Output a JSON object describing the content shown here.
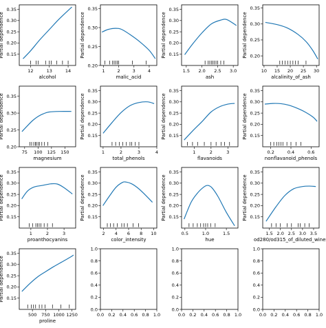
{
  "colors": {
    "line": "#1f77b4",
    "axes": "#000000",
    "background": "#ffffff"
  },
  "ylabel": "Partial dependence",
  "chart_data": [
    {
      "type": "line",
      "xlabel": "alcohol",
      "xlim": [
        11.4,
        14.4
      ],
      "ylim": [
        0.1,
        0.37
      ],
      "xticks": [
        12,
        13,
        14
      ],
      "yticks": [
        0.15,
        0.2,
        0.25,
        0.3,
        0.35
      ],
      "x": [
        11.6,
        12.0,
        12.5,
        13.0,
        13.5,
        14.0,
        14.2
      ],
      "y": [
        0.13,
        0.165,
        0.215,
        0.26,
        0.305,
        0.345,
        0.36
      ],
      "deciles": [
        12.0,
        12.3,
        12.4,
        12.8,
        13.0,
        13.1,
        13.4,
        13.7,
        14.0
      ]
    },
    {
      "type": "line",
      "xlabel": "malic_acid",
      "xlim": [
        0.8,
        4.5
      ],
      "ylim": [
        0.2,
        0.36
      ],
      "xticks": [
        1,
        2,
        3,
        4
      ],
      "yticks": [
        0.2,
        0.25,
        0.3,
        0.35
      ],
      "x": [
        0.9,
        1.3,
        1.8,
        2.2,
        2.8,
        3.4,
        4.0,
        4.4
      ],
      "y": [
        0.288,
        0.295,
        0.298,
        0.295,
        0.28,
        0.262,
        0.24,
        0.218
      ],
      "deciles": [
        1.1,
        1.4,
        1.6,
        1.7,
        1.8,
        1.9,
        2.0,
        2.9,
        3.8
      ]
    },
    {
      "type": "line",
      "xlabel": "ash",
      "xlim": [
        1.35,
        3.15
      ],
      "ylim": [
        0.1,
        0.37
      ],
      "xticks": [
        1.5,
        2.0,
        2.5,
        3.0
      ],
      "yticks": [
        0.15,
        0.2,
        0.25,
        0.3,
        0.35
      ],
      "x": [
        1.45,
        1.7,
        2.0,
        2.3,
        2.6,
        2.8,
        3.1
      ],
      "y": [
        0.148,
        0.195,
        0.245,
        0.285,
        0.302,
        0.304,
        0.278
      ],
      "deciles": [
        2.1,
        2.2,
        2.25,
        2.3,
        2.35,
        2.4,
        2.45,
        2.5,
        2.6,
        2.7
      ]
    },
    {
      "type": "line",
      "xlabel": "alcalinity_of_ash",
      "xlim": [
        9.5,
        31
      ],
      "ylim": [
        0.17,
        0.36
      ],
      "xticks": [
        10,
        15,
        20,
        25,
        30
      ],
      "yticks": [
        0.2,
        0.25,
        0.3,
        0.35
      ],
      "x": [
        10.5,
        15,
        19,
        23,
        26,
        28.5,
        30.5
      ],
      "y": [
        0.305,
        0.298,
        0.287,
        0.267,
        0.245,
        0.218,
        0.19
      ],
      "deciles": [
        16,
        17,
        18,
        19,
        20,
        21,
        22,
        23,
        26
      ]
    },
    {
      "type": "line",
      "xlabel": "magnesium",
      "xlim": [
        65,
        170
      ],
      "ylim": [
        0.2,
        0.38
      ],
      "xticks": [
        75,
        100,
        125,
        150
      ],
      "yticks": [
        0.2,
        0.25,
        0.3,
        0.35
      ],
      "x": [
        70,
        80,
        90,
        100,
        110,
        120,
        140,
        162
      ],
      "y": [
        0.245,
        0.262,
        0.278,
        0.29,
        0.298,
        0.303,
        0.305,
        0.305
      ],
      "deciles": [
        85,
        88,
        92,
        95,
        97,
        100,
        103,
        107,
        112,
        118
      ]
    },
    {
      "type": "line",
      "xlabel": "total_phenols",
      "xlim": [
        0.85,
        4.0
      ],
      "ylim": [
        0.1,
        0.37
      ],
      "xticks": [
        1,
        2,
        3,
        4
      ],
      "yticks": [
        0.15,
        0.2,
        0.25,
        0.3,
        0.35
      ],
      "x": [
        1.0,
        1.5,
        2.0,
        2.5,
        3.0,
        3.5,
        3.85
      ],
      "y": [
        0.16,
        0.208,
        0.252,
        0.283,
        0.297,
        0.3,
        0.292
      ],
      "deciles": [
        1.5,
        1.7,
        1.9,
        2.1,
        2.3,
        2.5,
        2.6,
        2.8,
        3.0
      ]
    },
    {
      "type": "line",
      "xlabel": "flavanoids",
      "xlim": [
        0.25,
        3.6
      ],
      "ylim": [
        0.1,
        0.37
      ],
      "xticks": [
        1,
        2,
        3
      ],
      "yticks": [
        0.15,
        0.2,
        0.25,
        0.3,
        0.35
      ],
      "x": [
        0.4,
        0.9,
        1.5,
        2.0,
        2.5,
        3.0,
        3.4
      ],
      "y": [
        0.13,
        0.17,
        0.215,
        0.255,
        0.278,
        0.29,
        0.293
      ],
      "deciles": [
        0.6,
        0.9,
        1.2,
        1.6,
        2.0,
        2.3,
        2.6,
        2.8,
        3.1
      ]
    },
    {
      "type": "line",
      "xlabel": "nonflavanoid_phenols",
      "xlim": [
        0.12,
        0.68
      ],
      "ylim": [
        0.1,
        0.37
      ],
      "xticks": [
        0.2,
        0.4,
        0.6
      ],
      "yticks": [
        0.15,
        0.2,
        0.25,
        0.3,
        0.35
      ],
      "x": [
        0.14,
        0.22,
        0.3,
        0.38,
        0.46,
        0.54,
        0.62,
        0.66
      ],
      "y": [
        0.29,
        0.293,
        0.292,
        0.285,
        0.272,
        0.255,
        0.232,
        0.213
      ],
      "deciles": [
        0.2,
        0.23,
        0.26,
        0.28,
        0.3,
        0.32,
        0.36,
        0.4,
        0.45,
        0.5
      ]
    },
    {
      "type": "line",
      "xlabel": "proanthocyanins",
      "xlim": [
        0.3,
        3.7
      ],
      "ylim": [
        0.1,
        0.37
      ],
      "xticks": [
        1,
        2,
        3
      ],
      "yticks": [
        0.15,
        0.2,
        0.25,
        0.3,
        0.35
      ],
      "x": [
        0.45,
        0.8,
        1.2,
        1.7,
        2.2,
        2.6,
        3.0,
        3.5
      ],
      "y": [
        0.23,
        0.265,
        0.283,
        0.29,
        0.297,
        0.296,
        0.28,
        0.252
      ],
      "deciles": [
        0.9,
        1.1,
        1.3,
        1.4,
        1.5,
        1.6,
        1.8,
        2.0,
        2.3
      ]
    },
    {
      "type": "line",
      "xlabel": "color_intensity",
      "xlim": [
        1.5,
        10.5
      ],
      "ylim": [
        0.1,
        0.37
      ],
      "xticks": [
        2,
        4,
        6,
        8,
        10
      ],
      "yticks": [
        0.15,
        0.2,
        0.25,
        0.3,
        0.35
      ],
      "x": [
        1.9,
        3.0,
        4.0,
        5.0,
        5.6,
        6.5,
        7.5,
        8.5,
        9.8
      ],
      "y": [
        0.2,
        0.245,
        0.282,
        0.303,
        0.305,
        0.297,
        0.278,
        0.252,
        0.215
      ],
      "deciles": [
        2.6,
        3.1,
        3.6,
        4.2,
        4.9,
        5.3,
        5.8,
        6.7,
        7.6
      ]
    },
    {
      "type": "line",
      "xlabel": "hue",
      "xlim": [
        0.42,
        1.78
      ],
      "ylim": [
        0.1,
        0.37
      ],
      "xticks": [
        0.5,
        1.0,
        1.5
      ],
      "yticks": [
        0.15,
        0.2,
        0.25,
        0.3,
        0.35
      ],
      "x": [
        0.48,
        0.65,
        0.8,
        0.95,
        1.05,
        1.15,
        1.3,
        1.5,
        1.7
      ],
      "y": [
        0.14,
        0.215,
        0.255,
        0.282,
        0.29,
        0.28,
        0.24,
        0.17,
        0.11
      ],
      "deciles": [
        0.6,
        0.7,
        0.8,
        0.88,
        0.95,
        1.0,
        1.05,
        1.12,
        1.23
      ]
    },
    {
      "type": "line",
      "xlabel": "od280/od315_of_diluted_wines",
      "xlim": [
        1.2,
        3.75
      ],
      "ylim": [
        0.1,
        0.37
      ],
      "xticks": [
        1.5,
        2.0,
        2.5,
        3.0,
        3.5
      ],
      "yticks": [
        0.15,
        0.2,
        0.25,
        0.3,
        0.35
      ],
      "x": [
        1.35,
        1.8,
        2.2,
        2.6,
        3.0,
        3.3,
        3.6
      ],
      "y": [
        0.13,
        0.195,
        0.245,
        0.275,
        0.285,
        0.287,
        0.285
      ],
      "deciles": [
        1.6,
        1.8,
        2.0,
        2.3,
        2.5,
        2.8,
        2.9,
        3.1,
        3.3
      ]
    },
    {
      "type": "line",
      "xlabel": "proline",
      "xlim": [
        250,
        1320
      ],
      "ylim": [
        0.1,
        0.37
      ],
      "xticks": [
        500,
        750,
        1000,
        1250
      ],
      "yticks": [
        0.15,
        0.2,
        0.25,
        0.3,
        0.35
      ],
      "x": [
        300,
        450,
        600,
        750,
        900,
        1050,
        1200,
        1280
      ],
      "y": [
        0.18,
        0.215,
        0.245,
        0.268,
        0.29,
        0.31,
        0.33,
        0.342
      ],
      "deciles": [
        410,
        480,
        520,
        560,
        630,
        680,
        740,
        880,
        1040,
        1200
      ]
    },
    {
      "type": "empty",
      "xlim": [
        0,
        1
      ],
      "ylim": [
        0,
        1
      ],
      "xticks": [
        0.0,
        0.2,
        0.4,
        0.6,
        0.8,
        1.0
      ],
      "yticks": [
        0.0,
        0.2,
        0.4,
        0.6,
        0.8,
        1.0
      ]
    },
    {
      "type": "empty",
      "xlim": [
        0,
        1
      ],
      "ylim": [
        0,
        1
      ],
      "xticks": [
        0.0,
        0.2,
        0.4,
        0.6,
        0.8,
        1.0
      ],
      "yticks": [
        0.0,
        0.2,
        0.4,
        0.6,
        0.8,
        1.0
      ]
    },
    {
      "type": "empty",
      "xlim": [
        0,
        1
      ],
      "ylim": [
        0,
        1
      ],
      "xticks": [
        0.0,
        0.2,
        0.4,
        0.6,
        0.8,
        1.0
      ],
      "yticks": [
        0.0,
        0.2,
        0.4,
        0.6,
        0.8,
        1.0
      ]
    }
  ]
}
